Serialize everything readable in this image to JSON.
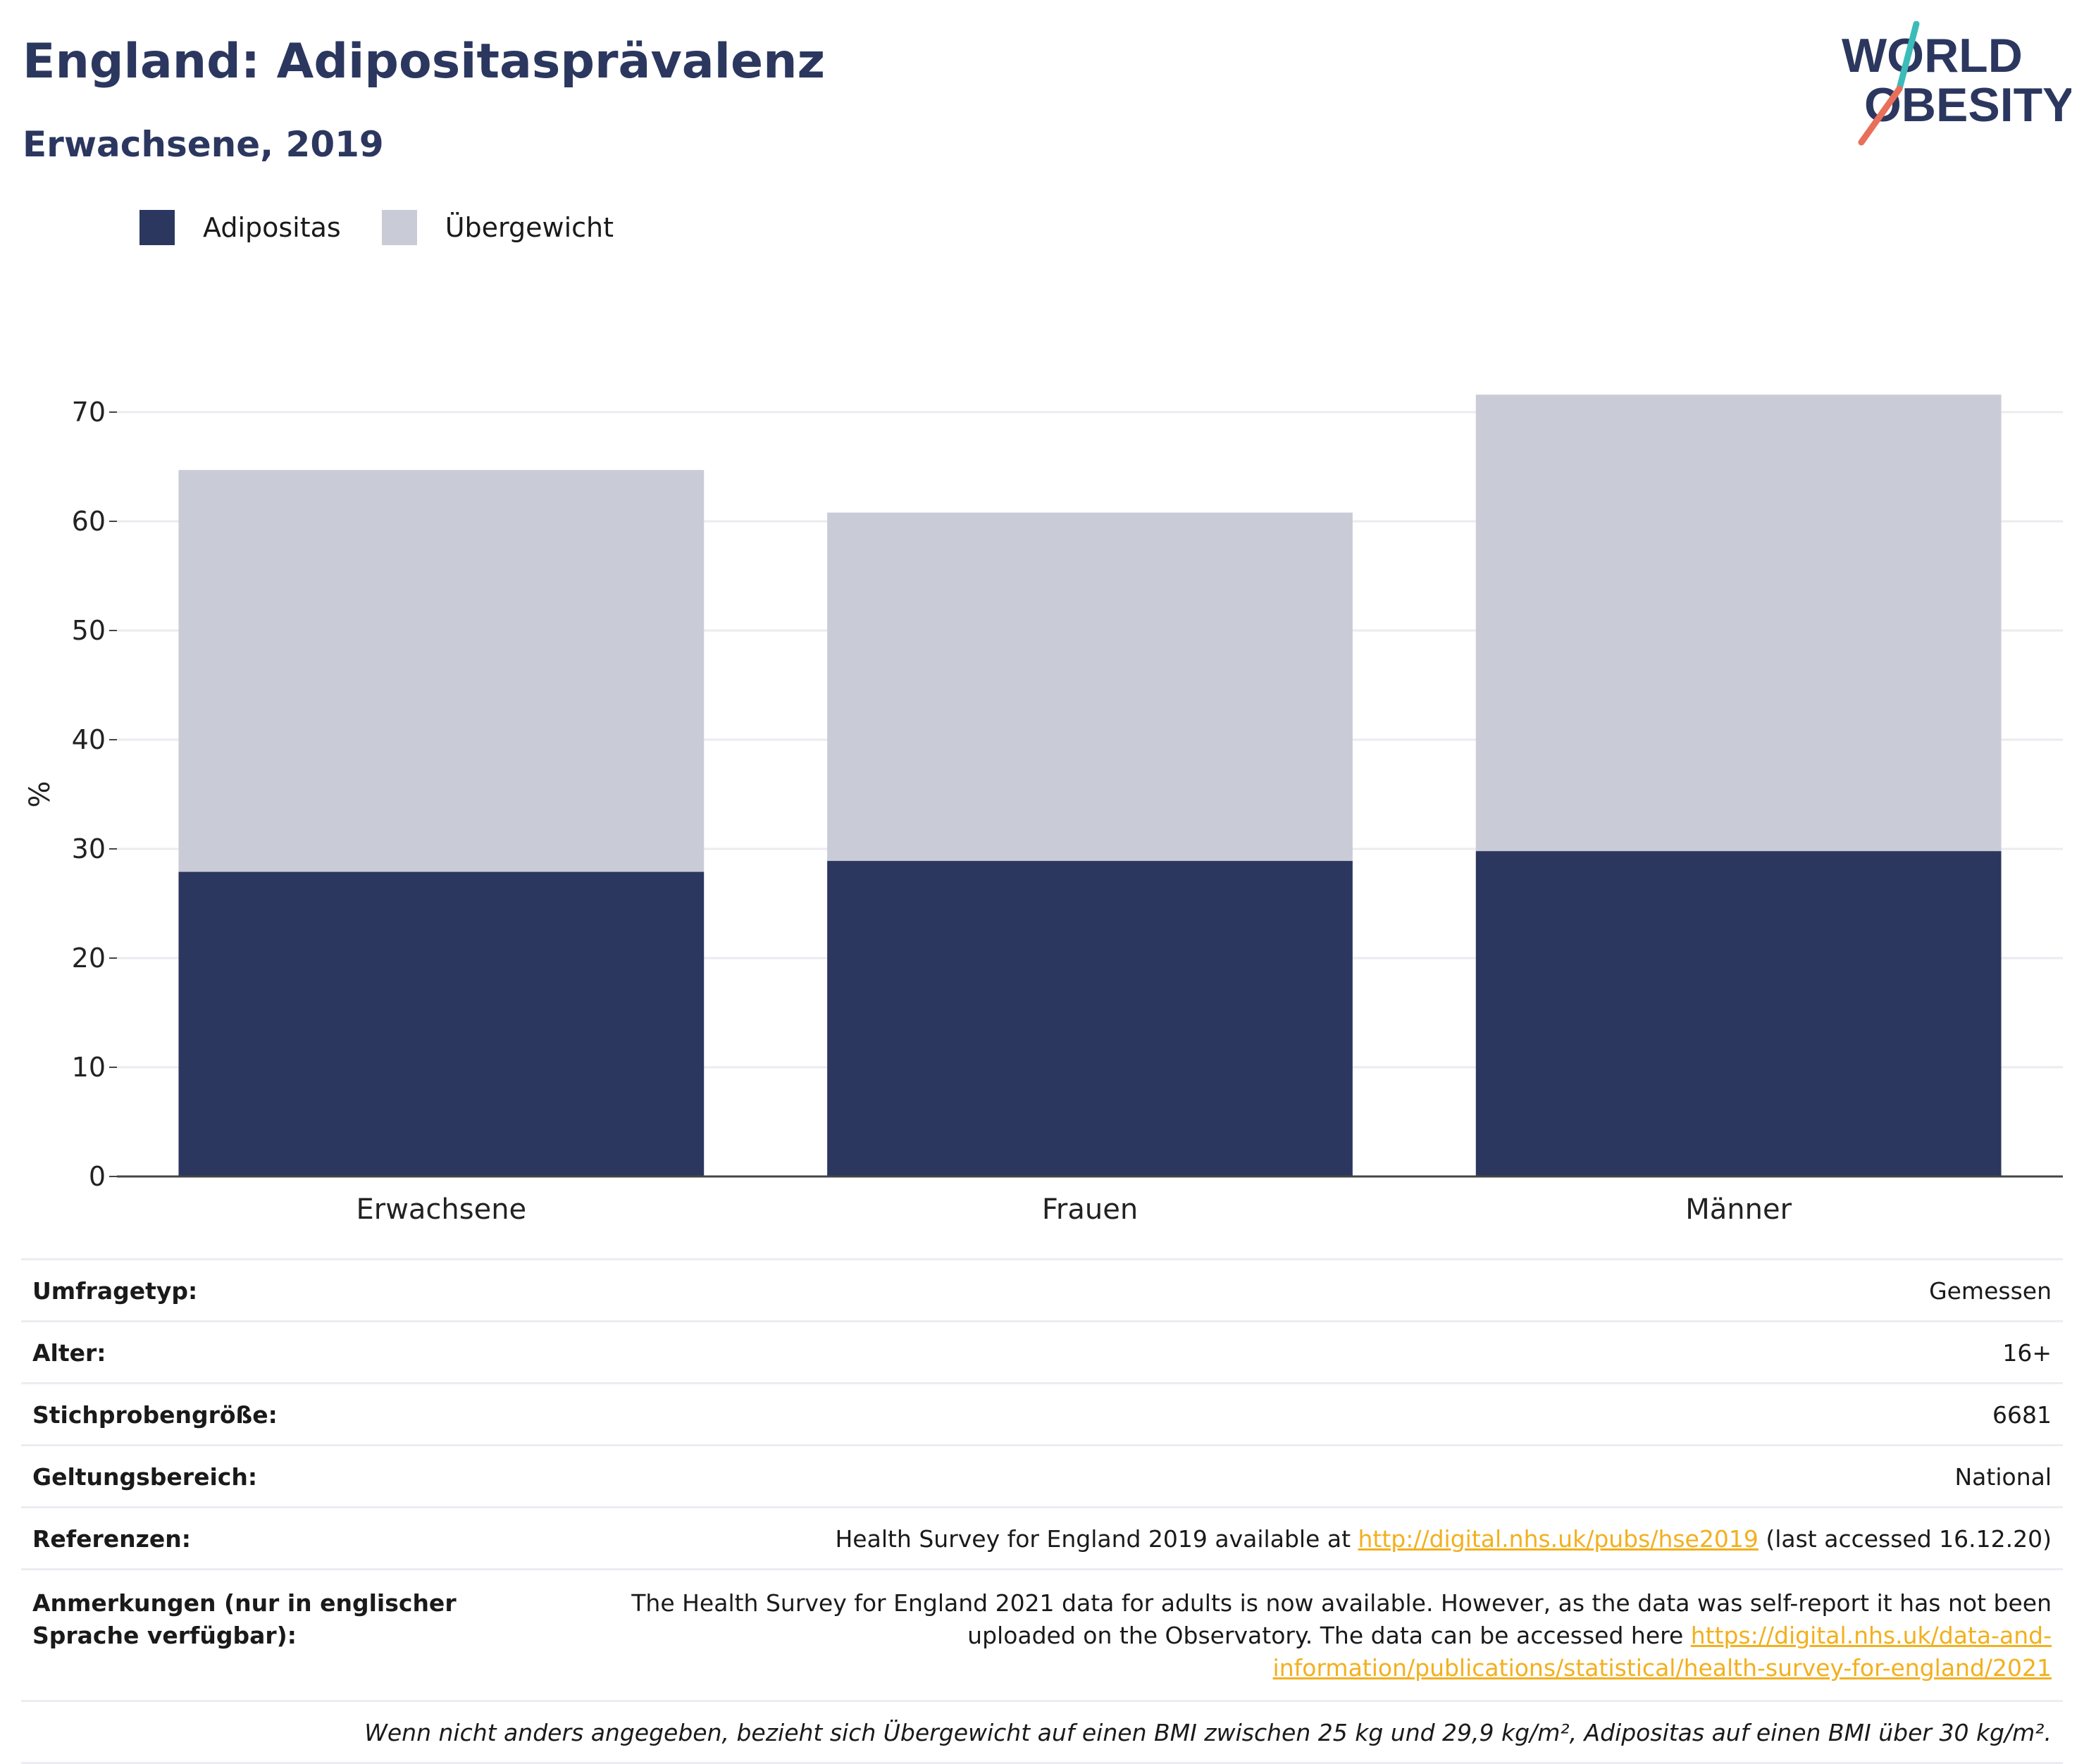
{
  "header": {
    "title": "England: Adipositasprävalenz",
    "subtitle": "Erwachsene, 2019"
  },
  "logo": {
    "line1": "WORLD",
    "line2": "OBESITY",
    "accent_teal": "#3bbcb8",
    "accent_red": "#e8705a",
    "text_color": "#2b375f"
  },
  "chart_data": {
    "type": "bar",
    "stacked": true,
    "categories": [
      "Erwachsene",
      "Frauen",
      "Männer"
    ],
    "series": [
      {
        "name": "Adipositas",
        "color": "#2b375f",
        "values": [
          27.9,
          28.9,
          29.8
        ]
      },
      {
        "name": "Übergewicht",
        "color": "#c9cbd7",
        "values": [
          36.8,
          31.9,
          41.8
        ]
      }
    ],
    "ylabel": "%",
    "ylim": [
      0,
      70
    ],
    "yticks": [
      0,
      10,
      20,
      30,
      40,
      50,
      60,
      70
    ],
    "grid": true,
    "legend": "top-left"
  },
  "meta": {
    "survey_type": {
      "label": "Umfragetyp:",
      "value": "Gemessen"
    },
    "age": {
      "label": "Alter:",
      "value": "16+"
    },
    "sample": {
      "label": "Stichprobengröße:",
      "value": "6681"
    },
    "scope": {
      "label": "Geltungsbereich:",
      "value": "National"
    },
    "refs": {
      "label": "Referenzen:",
      "pre": "Health Survey for England 2019 available at ",
      "link": "http://digital.nhs.uk/pubs/hse2019",
      "post": " (last accessed 16.12.20)"
    },
    "notes": {
      "label": "Anmerkungen (nur in englischer Sprache verfügbar):",
      "text": "The Health Survey for England 2021 data for adults is now available. However, as the data was self-report it has not been uploaded on the Observatory. The data can be accessed here ",
      "link": "https://digital.nhs.uk/data-and-information/publications/statistical/health-survey-for-england/2021"
    },
    "footnote": "Wenn nicht anders angegeben, bezieht sich Übergewicht auf einen BMI zwischen 25 kg und 29,9 kg/m², Adipositas auf einen BMI über 30 kg/m²."
  }
}
